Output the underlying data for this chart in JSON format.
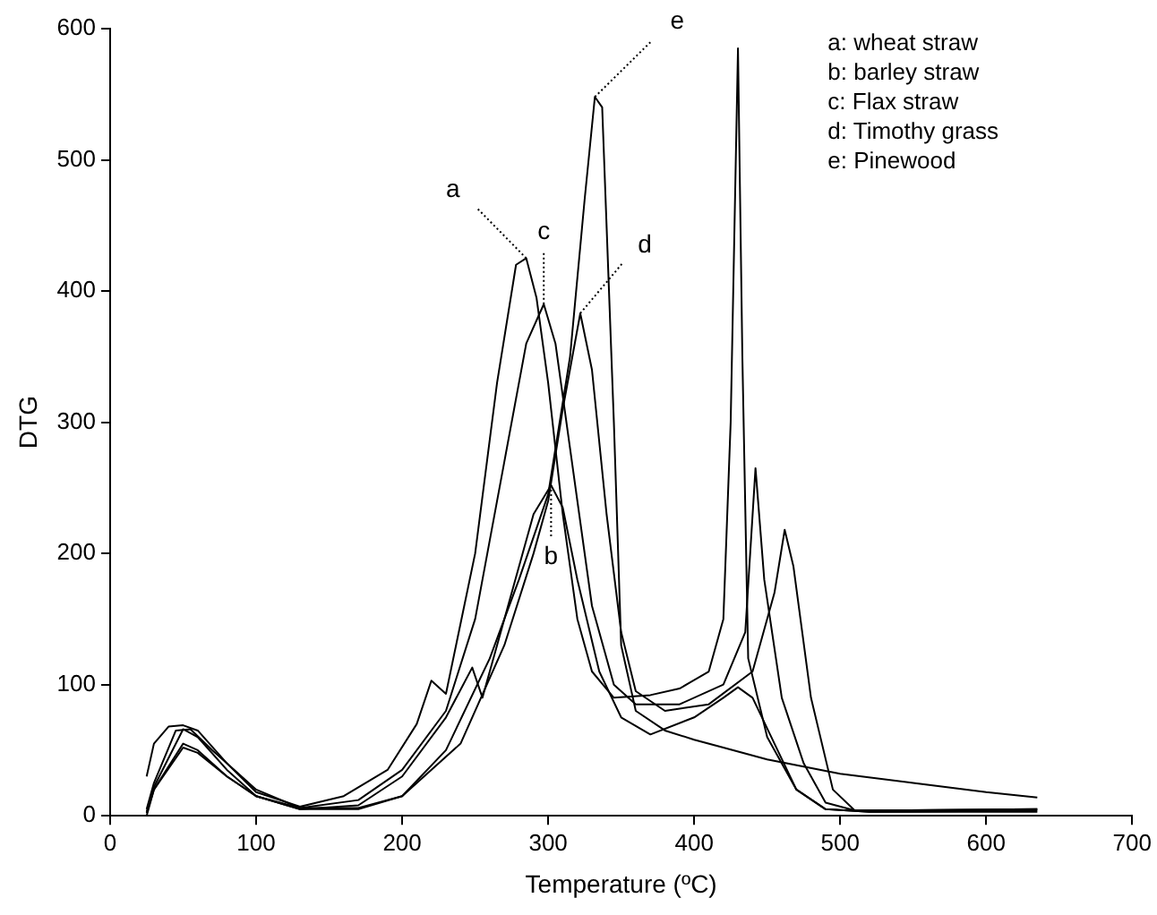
{
  "chart_data": {
    "type": "line",
    "xlabel": "Temperature (ºC)",
    "ylabel": "DTG",
    "xlim": [
      0,
      700
    ],
    "xticks": [
      0,
      100,
      200,
      300,
      400,
      500,
      600,
      700
    ],
    "ylim": [
      0,
      600
    ],
    "yticks": [
      0,
      100,
      200,
      300,
      400,
      500,
      600
    ],
    "grid": false,
    "marker": "none",
    "line_style": "solid",
    "series": [
      {
        "color": "#000000",
        "x": [
          25,
          30,
          40,
          50,
          60,
          80,
          100,
          130,
          160,
          190,
          210,
          220,
          230,
          250,
          265,
          278,
          285,
          292,
          300,
          310,
          320,
          330,
          345,
          370,
          390,
          410,
          420,
          425,
          430,
          433,
          437,
          450,
          470,
          490,
          520,
          635
        ],
        "values": [
          30,
          55,
          68,
          69,
          65,
          40,
          18,
          7,
          15,
          35,
          70,
          103,
          93,
          200,
          330,
          420,
          425,
          395,
          330,
          230,
          150,
          110,
          90,
          92,
          97,
          110,
          150,
          300,
          585,
          350,
          120,
          60,
          20,
          5,
          3,
          4
        ]
      },
      {
        "color": "#000000",
        "x": [
          25,
          30,
          50,
          60,
          80,
          100,
          130,
          170,
          200,
          230,
          248,
          255,
          270,
          290,
          302,
          310,
          320,
          335,
          350,
          370,
          400,
          420,
          430,
          440,
          455,
          470,
          490,
          520,
          635
        ],
        "values": [
          0,
          20,
          55,
          50,
          30,
          15,
          5,
          8,
          30,
          75,
          113,
          90,
          150,
          230,
          252,
          235,
          180,
          110,
          75,
          62,
          75,
          90,
          98,
          90,
          55,
          20,
          5,
          3,
          3
        ]
      },
      {
        "color": "#000000",
        "x": [
          25,
          30,
          45,
          55,
          70,
          100,
          130,
          170,
          200,
          230,
          250,
          270,
          285,
          297,
          305,
          315,
          330,
          345,
          360,
          390,
          420,
          435,
          442,
          448,
          460,
          475,
          490,
          510,
          635
        ],
        "values": [
          5,
          25,
          65,
          66,
          50,
          20,
          6,
          12,
          35,
          80,
          150,
          270,
          360,
          390,
          360,
          280,
          160,
          100,
          85,
          85,
          100,
          140,
          265,
          180,
          90,
          40,
          10,
          4,
          5
        ]
      },
      {
        "color": "#000000",
        "x": [
          25,
          30,
          50,
          60,
          80,
          100,
          130,
          170,
          200,
          240,
          270,
          290,
          300,
          310,
          322,
          330,
          340,
          350,
          360,
          380,
          410,
          440,
          455,
          462,
          468,
          480,
          495,
          510,
          635
        ],
        "values": [
          3,
          22,
          66,
          60,
          35,
          15,
          6,
          6,
          15,
          55,
          130,
          200,
          240,
          310,
          383,
          340,
          230,
          140,
          95,
          80,
          85,
          110,
          170,
          218,
          190,
          90,
          20,
          4,
          5
        ]
      },
      {
        "color": "#000000",
        "x": [
          25,
          30,
          50,
          60,
          80,
          100,
          130,
          170,
          200,
          230,
          260,
          280,
          300,
          315,
          325,
          332,
          337,
          345,
          350,
          360,
          380,
          400,
          420,
          450,
          500,
          550,
          600,
          635
        ],
        "values": [
          2,
          20,
          52,
          48,
          30,
          15,
          5,
          5,
          15,
          50,
          120,
          180,
          245,
          350,
          470,
          548,
          540,
          300,
          130,
          80,
          65,
          58,
          52,
          43,
          32,
          25,
          18,
          14
        ]
      }
    ],
    "annotations": [
      "a: wheat straw",
      "b: barley straw",
      "c: Flax straw",
      "d: Timothy grass",
      "e: Pinewood",
      {
        "text": "a",
        "x": 285,
        "y": 425
      },
      {
        "text": "b",
        "x": 302,
        "y": 252
      },
      {
        "text": "c",
        "x": 297,
        "y": 390
      },
      {
        "text": "d",
        "x": 322,
        "y": 383
      },
      {
        "text": "e",
        "x": 332,
        "y": 548
      }
    ]
  }
}
